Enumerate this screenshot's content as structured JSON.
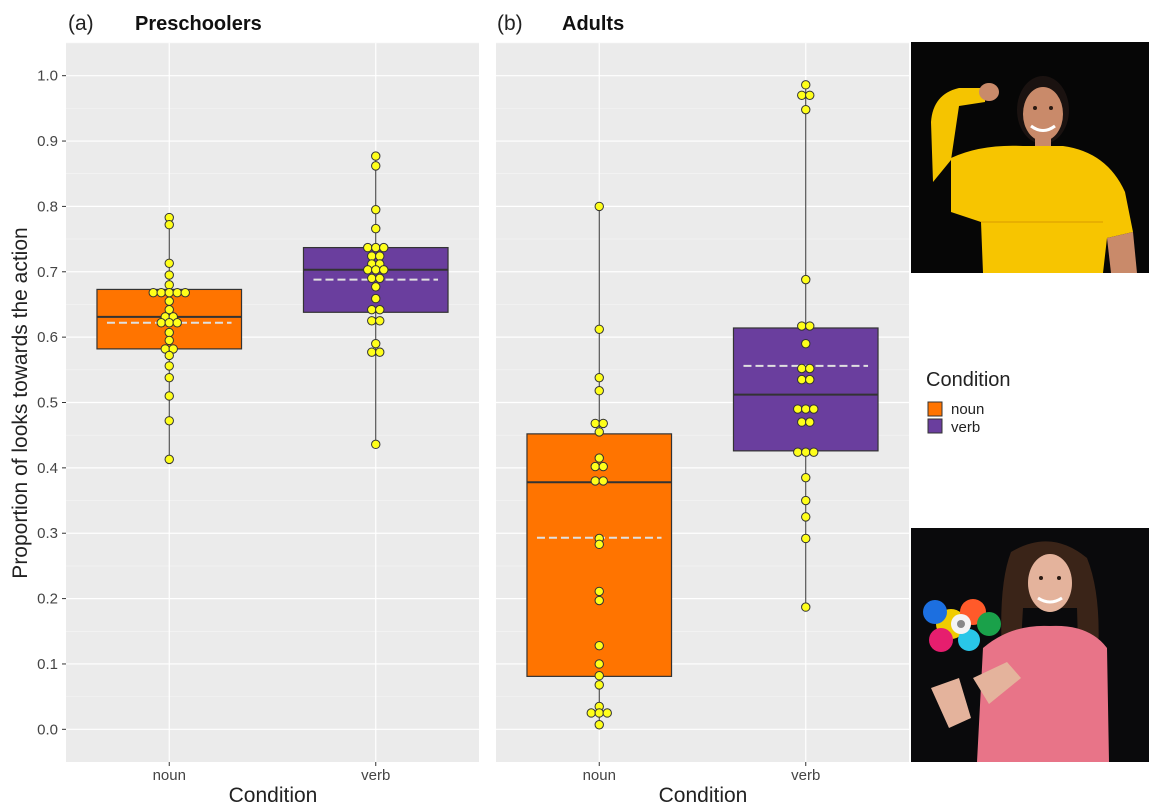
{
  "chart_data": [
    {
      "type": "boxplot",
      "panel_label": "(a)",
      "title": "Preschoolers",
      "xlabel": "Condition",
      "ylabel": "Proportion of looks towards the action",
      "ylim": [
        -0.05,
        1.05
      ],
      "yticks": [
        "0.0",
        "0.1",
        "0.2",
        "0.3",
        "0.4",
        "0.5",
        "0.6",
        "0.7",
        "0.8",
        "0.9",
        "1.0"
      ],
      "categories": [
        "noun",
        "verb"
      ],
      "grid": true,
      "boxes": [
        {
          "category": "noun",
          "color": "#ff7400",
          "q1": 0.582,
          "median": 0.631,
          "q3": 0.673,
          "mean": 0.622,
          "whisker_low": 0.413,
          "whisker_high": 0.783,
          "points": [
            0.783,
            0.772,
            0.713,
            0.695,
            0.68,
            0.668,
            0.668,
            0.668,
            0.668,
            0.668,
            0.655,
            0.642,
            0.631,
            0.631,
            0.622,
            0.618,
            0.618,
            0.607,
            0.595,
            0.582,
            0.582,
            0.572,
            0.556,
            0.538,
            0.51,
            0.472,
            0.413
          ]
        },
        {
          "category": "verb",
          "color": "#6a3e9e",
          "q1": 0.638,
          "median": 0.703,
          "q3": 0.737,
          "mean": 0.688,
          "whisker_low": 0.436,
          "whisker_high": 0.877,
          "points": [
            0.877,
            0.862,
            0.795,
            0.766,
            0.737,
            0.737,
            0.737,
            0.724,
            0.724,
            0.712,
            0.712,
            0.703,
            0.703,
            0.703,
            0.69,
            0.69,
            0.677,
            0.659,
            0.642,
            0.642,
            0.625,
            0.625,
            0.59,
            0.577,
            0.577,
            0.436
          ]
        }
      ]
    },
    {
      "type": "boxplot",
      "panel_label": "(b)",
      "title": "Adults",
      "xlabel": "Condition",
      "ylabel": "",
      "ylim": [
        -0.05,
        1.05
      ],
      "categories": [
        "noun",
        "verb"
      ],
      "grid": true,
      "boxes": [
        {
          "category": "noun",
          "color": "#ff7400",
          "q1": 0.081,
          "median": 0.378,
          "q3": 0.452,
          "mean": 0.293,
          "whisker_low": 0.007,
          "whisker_high": 0.8,
          "points": [
            0.8,
            0.612,
            0.538,
            0.518,
            0.468,
            0.468,
            0.455,
            0.415,
            0.402,
            0.402,
            0.38,
            0.38,
            0.292,
            0.283,
            0.211,
            0.197,
            0.128,
            0.1,
            0.082,
            0.068,
            0.035,
            0.025,
            0.025,
            0.025,
            0.007
          ]
        },
        {
          "category": "verb",
          "color": "#6a3e9e",
          "q1": 0.426,
          "median": 0.512,
          "q3": 0.614,
          "mean": 0.556,
          "whisker_low": 0.187,
          "whisker_high": 0.986,
          "points": [
            0.986,
            0.97,
            0.97,
            0.948,
            0.688,
            0.617,
            0.617,
            0.59,
            0.552,
            0.552,
            0.535,
            0.535,
            0.49,
            0.49,
            0.49,
            0.47,
            0.47,
            0.424,
            0.424,
            0.424,
            0.385,
            0.35,
            0.325,
            0.292,
            0.187
          ]
        }
      ]
    }
  ],
  "legend": {
    "title": "Condition",
    "placement": "right",
    "items": [
      {
        "label": "noun",
        "color": "#ff7400"
      },
      {
        "label": "verb",
        "color": "#6a3e9e"
      }
    ]
  },
  "photos": [
    {
      "name": "woman-flexing-arm-photo",
      "subject": "yellow-shirt"
    },
    {
      "name": "woman-holding-toy-photo",
      "subject": "pink-shirt"
    }
  ]
}
